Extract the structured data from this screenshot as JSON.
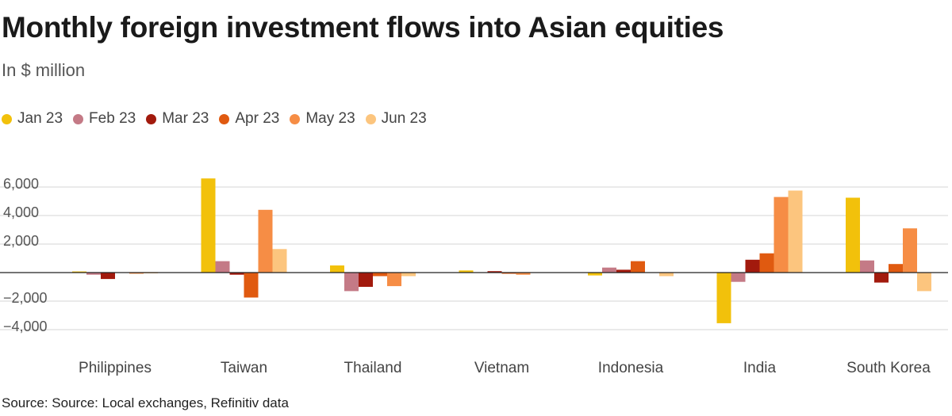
{
  "chart_data": {
    "type": "bar",
    "title": "Monthly foreign investment flows into Asian equities",
    "subtitle": "In $ million",
    "source": "Source: Source: Local exchanges, Refinitiv data",
    "xlabel": "",
    "ylabel": "",
    "ylim": [
      -4500,
      6500
    ],
    "yticks": [
      6000,
      4000,
      2000,
      -2000,
      -4000
    ],
    "ytick_labels": [
      "6,000",
      "4,000",
      "2,000",
      "−2,000",
      "−4,000"
    ],
    "legend_position": "top-left",
    "categories": [
      "Philippines",
      "Taiwan",
      "Thailand",
      "Vietnam",
      "Indonesia",
      "India",
      "South Korea"
    ],
    "series": [
      {
        "name": "Jan 23",
        "color": "#f2c10b",
        "values": [
          80,
          6600,
          500,
          150,
          -200,
          -3550,
          5250
        ]
      },
      {
        "name": "Feb 23",
        "color": "#c47a86",
        "values": [
          -150,
          800,
          -1300,
          0,
          350,
          -650,
          850
        ]
      },
      {
        "name": "Mar 23",
        "color": "#a21a0d",
        "values": [
          -450,
          -150,
          -1000,
          100,
          200,
          900,
          -700
        ]
      },
      {
        "name": "Apr 23",
        "color": "#e05a10",
        "values": [
          0,
          -1750,
          -250,
          -50,
          800,
          1350,
          600
        ]
      },
      {
        "name": "May 23",
        "color": "#f68d45",
        "values": [
          -50,
          4400,
          -950,
          -150,
          0,
          5300,
          3100
        ]
      },
      {
        "name": "Jun 23",
        "color": "#fcc57e",
        "values": [
          30,
          1650,
          -250,
          0,
          -250,
          5750,
          -1300
        ]
      }
    ]
  }
}
